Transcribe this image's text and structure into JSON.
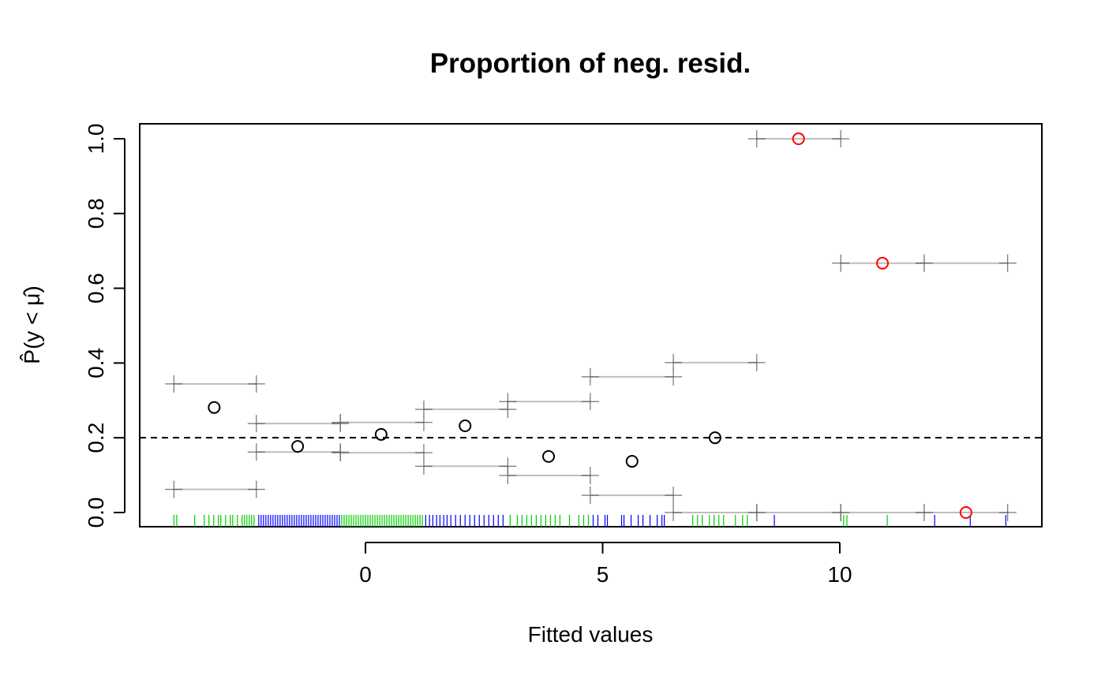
{
  "chart_data": {
    "type": "scatter",
    "title": "Proportion of neg. resid.",
    "x_label": "Fitted values",
    "y_label": "P̂(y < μ̂)",
    "xlim": [
      -4.76,
      14.26
    ],
    "ylim": [
      -0.038,
      1.04
    ],
    "xticks": [
      0,
      5,
      10
    ],
    "yticks": [
      {
        "value": 0,
        "label": "0.0"
      },
      {
        "value": 0.2,
        "label": "0.2"
      },
      {
        "value": 0.4,
        "label": "0.4"
      },
      {
        "value": 0.6,
        "label": "0.6"
      },
      {
        "value": 0.8,
        "label": "0.8"
      },
      {
        "value": 1,
        "label": "1.0"
      }
    ],
    "reference_line": 0.2,
    "points": {
      "x": [
        -3.19,
        -1.43,
        0.33,
        2.1,
        3.86,
        5.62,
        7.37,
        9.13,
        10.9,
        12.66
      ],
      "y": [
        0.281,
        0.177,
        0.209,
        0.232,
        0.15,
        0.137,
        0.2,
        1.0,
        0.667,
        0.0
      ],
      "colors": [
        "#000000",
        "#000000",
        "#000000",
        "#000000",
        "#000000",
        "#000000",
        "#000000",
        "#ff0000",
        "#ff0000",
        "#ff0000"
      ]
    },
    "intervals": {
      "color": "#bebebe",
      "x_left": [
        -4.04,
        -2.3,
        -0.53,
        1.23,
        3.0,
        4.74,
        6.49,
        8.25,
        10.02,
        11.78
      ],
      "x_right": [
        -2.3,
        -0.53,
        1.23,
        3.0,
        4.74,
        6.49,
        8.25,
        10.02,
        11.78,
        13.54
      ],
      "upper": [
        0.344,
        0.238,
        0.241,
        0.276,
        0.297,
        0.363,
        0.401,
        1.0,
        0.667,
        0.667
      ],
      "lower": [
        0.062,
        0.162,
        0.16,
        0.124,
        0.099,
        0.046,
        0.0,
        0.0,
        0.0,
        0.0
      ]
    },
    "rug": [
      {
        "color": "#00cd00",
        "values": [
          -4.04,
          -3.98,
          -3.6,
          -3.4,
          -3.3,
          -3.2,
          -3.1,
          -3.05,
          -2.95,
          -2.85,
          -2.8,
          -2.7,
          -2.6,
          -2.55,
          -2.5,
          -2.45,
          -2.4,
          -2.35,
          -0.5,
          -0.45,
          -0.4,
          -0.35,
          -0.3,
          -0.25,
          -0.2,
          -0.15,
          -0.1,
          -0.05,
          0.0,
          0.05,
          0.1,
          0.15,
          0.2,
          0.25,
          0.3,
          0.35,
          0.4,
          0.45,
          0.5,
          0.55,
          0.6,
          0.65,
          0.7,
          0.75,
          0.8,
          0.85,
          0.9,
          0.95,
          1.0,
          1.05,
          1.1,
          1.15,
          1.2,
          3.05,
          3.2,
          3.3,
          3.4,
          3.5,
          3.6,
          3.7,
          3.8,
          3.9,
          4.0,
          4.1,
          4.3,
          4.5,
          4.6,
          4.7,
          6.9,
          7.0,
          7.1,
          7.25,
          7.35,
          7.45,
          7.55,
          7.8,
          7.95,
          8.05,
          10.08,
          10.15,
          11.0
        ]
      },
      {
        "color": "#0000ff",
        "values": [
          -2.25,
          -2.2,
          -2.15,
          -2.1,
          -2.05,
          -2.0,
          -1.95,
          -1.9,
          -1.85,
          -1.8,
          -1.75,
          -1.7,
          -1.65,
          -1.6,
          -1.55,
          -1.5,
          -1.45,
          -1.4,
          -1.35,
          -1.3,
          -1.25,
          -1.2,
          -1.15,
          -1.1,
          -1.05,
          -1.0,
          -0.95,
          -0.9,
          -0.85,
          -0.8,
          -0.75,
          -0.7,
          -0.65,
          -0.6,
          -0.55,
          1.27,
          1.35,
          1.42,
          1.5,
          1.57,
          1.65,
          1.72,
          1.8,
          1.9,
          2.0,
          2.1,
          2.2,
          2.3,
          2.4,
          2.5,
          2.6,
          2.7,
          2.8,
          2.9,
          4.8,
          4.9,
          5.05,
          5.1,
          5.4,
          5.45,
          5.6,
          5.75,
          5.85,
          6.0,
          6.15,
          6.25,
          6.3,
          8.62,
          12.0,
          12.75,
          13.5
        ]
      }
    ]
  }
}
